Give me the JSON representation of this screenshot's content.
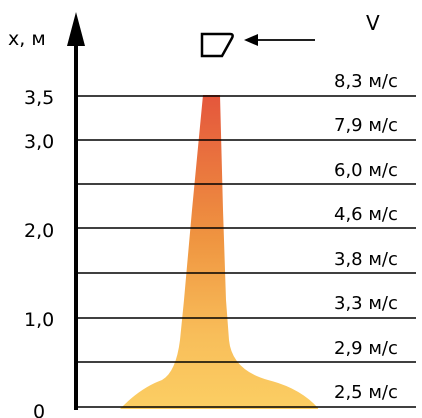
{
  "axis": {
    "label": "x, м",
    "ticks": [
      "3,5",
      "3,0",
      "2,0",
      "1,0",
      "0"
    ]
  },
  "velocity": {
    "label": "V",
    "levels": [
      "8,3 м/с",
      "7,9 м/с",
      "6,0 м/с",
      "4,6 м/с",
      "3,8 м/с",
      "3,3 м/с",
      "2,9 м/с",
      "2,5 м/с"
    ]
  },
  "colors": {
    "plume_top": "#e4543c",
    "plume_mid": "#ef9440",
    "plume_base": "#fcd064",
    "line": "#000000"
  }
}
